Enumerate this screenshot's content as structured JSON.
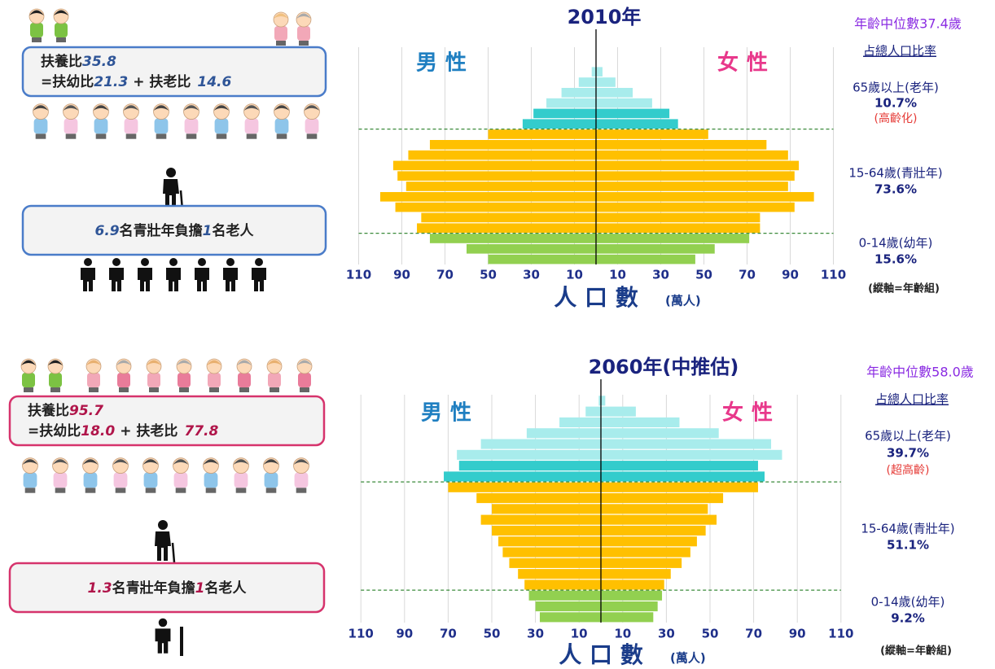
{
  "chart_data": [
    {
      "type": "pyramid",
      "title": "2010年",
      "median": "年齡中位數37.4歲",
      "share_heading": "占總人口比率",
      "series": [
        {
          "name": "男性",
          "color": "#1f7fc1",
          "values": [
            50,
            60,
            77,
            83,
            81,
            93,
            100,
            88,
            92,
            94,
            87,
            77,
            50,
            34,
            29,
            23,
            16,
            8,
            2
          ]
        },
        {
          "name": "女性",
          "color": "#e8388b",
          "values": [
            46,
            55,
            71,
            76,
            76,
            92,
            101,
            89,
            92,
            94,
            89,
            79,
            52,
            38,
            34,
            26,
            17,
            9,
            3
          ]
        }
      ],
      "colors": [
        "#92d050",
        "#92d050",
        "#92d050",
        "#ffc000",
        "#ffc000",
        "#ffc000",
        "#ffc000",
        "#ffc000",
        "#ffc000",
        "#ffc000",
        "#ffc000",
        "#ffc000",
        "#ffc000",
        "#33cccc",
        "#33cccc",
        "#a8ecec",
        "#a8ecec",
        "#a8ecec",
        "#a8ecec"
      ],
      "xlim": [
        0,
        110
      ],
      "xticks": [
        10,
        30,
        50,
        70,
        90,
        110
      ],
      "grid": true,
      "xlabel": "人 口 數",
      "xlabel_unit": "(萬人)",
      "y_note": "(縱軸=年齡組)",
      "groups": [
        {
          "label": "65歲以上(老年)",
          "share": "10.7%",
          "note": "(高齡化)"
        },
        {
          "label": "15-64歲(青壯年)",
          "share": "73.6%"
        },
        {
          "label": "0-14歲(幼年)",
          "share": "15.6%"
        }
      ]
    },
    {
      "type": "pyramid",
      "title": "2060年(中推估)",
      "median": "年齡中位數58.0歲",
      "share_heading": "占總人口比率",
      "series": [
        {
          "name": "男性",
          "color": "#1f7fc1",
          "values": [
            28,
            30,
            33,
            35,
            38,
            42,
            45,
            47,
            50,
            55,
            50,
            57,
            70,
            72,
            65,
            66,
            55,
            34,
            19,
            7,
            1
          ]
        },
        {
          "name": "女性",
          "color": "#e8388b",
          "values": [
            24,
            26,
            28,
            29,
            32,
            37,
            41,
            44,
            48,
            53,
            49,
            56,
            72,
            75,
            72,
            83,
            78,
            54,
            36,
            16,
            2
          ]
        }
      ],
      "colors": [
        "#92d050",
        "#92d050",
        "#92d050",
        "#ffc000",
        "#ffc000",
        "#ffc000",
        "#ffc000",
        "#ffc000",
        "#ffc000",
        "#ffc000",
        "#ffc000",
        "#ffc000",
        "#ffc000",
        "#33cccc",
        "#33cccc",
        "#a8ecec",
        "#a8ecec",
        "#a8ecec",
        "#a8ecec",
        "#a8ecec",
        "#a8ecec"
      ],
      "xlim": [
        0,
        110
      ],
      "xticks": [
        10,
        30,
        50,
        70,
        90,
        110
      ],
      "grid": true,
      "xlabel": "人 口 數",
      "xlabel_unit": "(萬人)",
      "y_note": "(縱軸=年齡組)",
      "groups": [
        {
          "label": "65歲以上(老年)",
          "share": "39.7%",
          "note": "(超高齡)"
        },
        {
          "label": "15-64歲(青壯年)",
          "share": "51.1%"
        },
        {
          "label": "0-14歲(幼年)",
          "share": "9.2%"
        }
      ]
    }
  ],
  "panels": [
    {
      "ratio": {
        "label": "扶養比",
        "value": "35.8"
      },
      "split": {
        "young_label": "=扶幼比",
        "young": "21.3",
        "old_label": "+ 扶老比",
        "old": "14.6"
      },
      "burden": {
        "workers": "6.9",
        "mid": "名青壯年負擔",
        "elders": "1",
        "end": "名老人"
      }
    },
    {
      "ratio": {
        "label": "扶養比",
        "value": "95.7"
      },
      "split": {
        "young_label": "=扶幼比",
        "young": "18.0",
        "old_label": "+ 扶老比",
        "old": "77.8"
      },
      "burden": {
        "workers": "1.3",
        "mid": "名青壯年負擔",
        "elders": "1",
        "end": "名老人"
      }
    }
  ]
}
